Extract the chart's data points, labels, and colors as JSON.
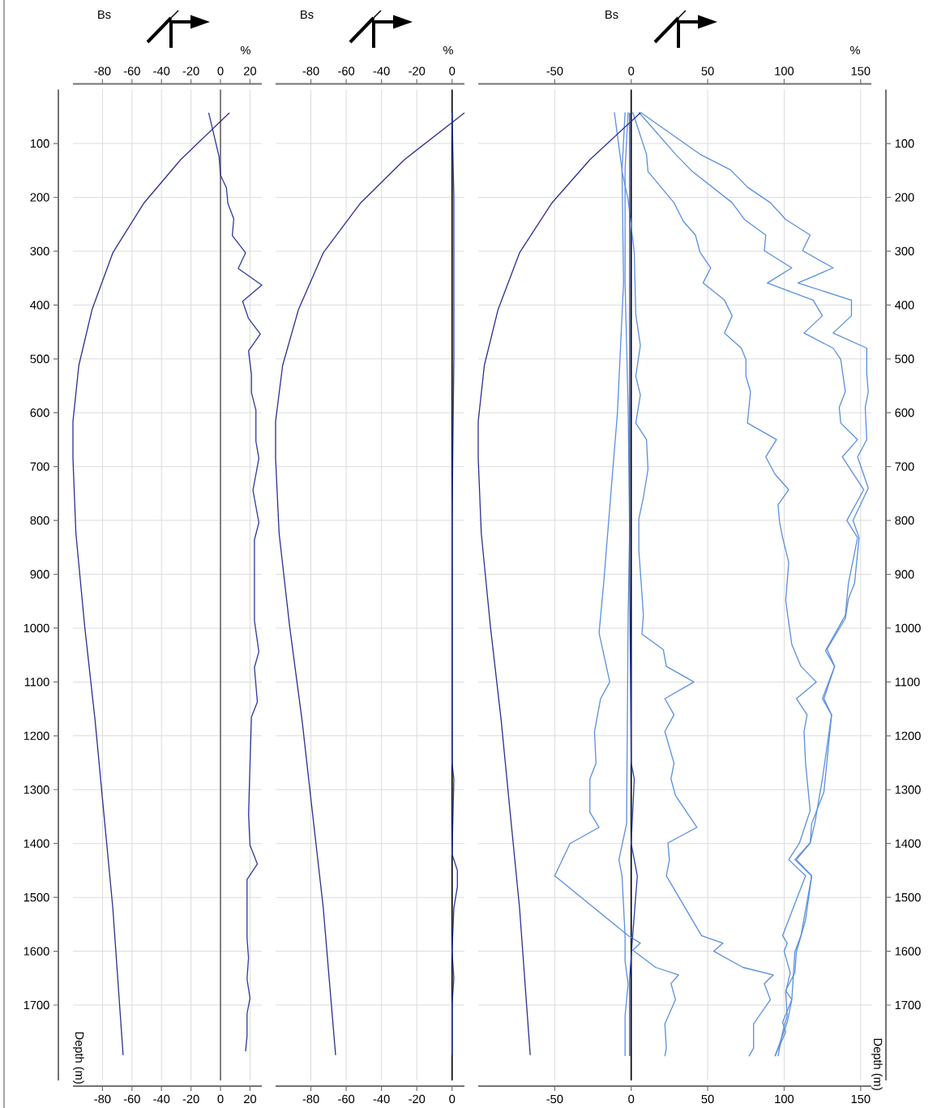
{
  "chart_data": [
    {
      "type": "line",
      "title": "Bs",
      "x2label": "%",
      "ylabel": "Depth (m)",
      "xlim": [
        -100,
        28
      ],
      "xticks": [
        -80,
        -60,
        -40,
        -20,
        0,
        20
      ],
      "x2lim": [
        -100,
        28
      ],
      "x2ticks": [
        -80,
        -60,
        -40,
        -20,
        0,
        20
      ],
      "ylim": [
        1840,
        0
      ],
      "yticks": [
        100,
        200,
        300,
        400,
        500,
        600,
        700,
        800,
        900,
        1000,
        1100,
        1200,
        1300,
        1400,
        1500,
        1600,
        1700
      ],
      "grid": true,
      "ref_lines": [
        {
          "axis": "x",
          "value": 0,
          "color": "#666666"
        }
      ],
      "series": [
        {
          "color": "#2b2f8f",
          "x": [
            6,
            -27,
            -52,
            -73,
            -87,
            -96,
            -100,
            -100,
            -98,
            -92,
            -85,
            -79,
            -73,
            -66
          ],
          "values": [
            43,
            130,
            211,
            303,
            408,
            512,
            616,
            685,
            824,
            998,
            1171,
            1346,
            1519,
            1793
          ]
        },
        {
          "color": "#2d3a9e",
          "x": [
            -8,
            -1,
            0,
            4,
            5,
            9,
            8,
            17,
            12,
            28,
            15,
            19,
            27,
            19,
            21,
            21,
            24,
            24,
            26,
            22,
            26,
            23,
            23,
            26,
            23,
            25,
            21,
            20,
            19,
            20,
            25,
            18,
            18,
            19,
            18,
            20,
            18,
            18,
            17
          ],
          "values": [
            43,
            124,
            159,
            182,
            211,
            240,
            271,
            303,
            332,
            363,
            393,
            425,
            454,
            485,
            529,
            563,
            595,
            653,
            685,
            744,
            804,
            836,
            986,
            1044,
            1073,
            1137,
            1165,
            1253,
            1346,
            1403,
            1438,
            1467,
            1576,
            1612,
            1652,
            1687,
            1716,
            1757,
            1786
          ]
        }
      ]
    },
    {
      "type": "line",
      "title": "Bs",
      "x2label": "%",
      "tick_labels": "x",
      "xlim": [
        -100,
        7
      ],
      "xticks": [
        -80,
        -60,
        -40,
        -20,
        0
      ],
      "x2lim": [
        -100,
        7
      ],
      "x2ticks": [
        -80,
        -60,
        -40,
        -20,
        0
      ],
      "ylim": [
        1840,
        0
      ],
      "yticks": [
        100,
        200,
        300,
        400,
        500,
        600,
        700,
        800,
        900,
        1000,
        1100,
        1200,
        1300,
        1400,
        1500,
        1600,
        1700
      ],
      "grid": true,
      "ref_lines": [
        {
          "axis": "x",
          "value": 0,
          "color": "#000000"
        }
      ],
      "series": [
        {
          "color": "#2b2f8f",
          "x": [
            7,
            -27,
            -52,
            -73,
            -87,
            -96,
            -100,
            -100,
            -98,
            -92,
            -85,
            -79,
            -73,
            -66
          ],
          "values": [
            43,
            130,
            211,
            303,
            408,
            512,
            616,
            685,
            824,
            998,
            1171,
            1346,
            1519,
            1793
          ]
        },
        {
          "color": "#1f35a5",
          "x": [
            0,
            1,
            1,
            0,
            0,
            1,
            0,
            3,
            3,
            1,
            0,
            1,
            0,
            0
          ],
          "values": [
            43,
            200,
            500,
            800,
            1250,
            1280,
            1420,
            1450,
            1480,
            1520,
            1600,
            1650,
            1700,
            1793
          ]
        }
      ]
    },
    {
      "type": "line",
      "title": "Bs",
      "x2label": "%",
      "ylabel": "Depth (m)",
      "xlim": [
        -100,
        157
      ],
      "xticks": [
        -50,
        0,
        50,
        100,
        150
      ],
      "x2lim": [
        -100,
        157
      ],
      "x2ticks": [
        -50,
        0,
        50,
        100,
        150
      ],
      "ylim": [
        1840,
        0
      ],
      "yticks": [
        100,
        200,
        300,
        400,
        500,
        600,
        700,
        800,
        900,
        1000,
        1100,
        1200,
        1300,
        1400,
        1500,
        1600,
        1700
      ],
      "grid": true,
      "ref_lines": [
        {
          "axis": "x",
          "value": 0,
          "color": "#000000"
        }
      ],
      "series": [
        {
          "color": "#5b8fe0",
          "x": [
            -2,
            -4,
            -4,
            -2,
            -1,
            -2,
            -3,
            -8,
            -6,
            -4,
            -4,
            -2,
            -4,
            -4
          ],
          "values": [
            42,
            149,
            359,
            590,
            820,
            976,
            1363,
            1430,
            1460,
            1571,
            1619,
            1661,
            1720,
            1795
          ]
        },
        {
          "color": "#5b8fe0",
          "x": [
            -11,
            -6,
            -5,
            -9,
            -12,
            -18,
            -21,
            -14,
            -20,
            -24,
            -23,
            -27,
            -27,
            -21,
            -40,
            -50,
            -2,
            6,
            1,
            16,
            31,
            26,
            29,
            22,
            23,
            22
          ],
          "values": [
            42,
            149,
            359,
            601,
            705,
            917,
            1009,
            1100,
            1131,
            1192,
            1251,
            1280,
            1342,
            1370,
            1400,
            1460,
            1571,
            1585,
            1598,
            1630,
            1644,
            1660,
            1690,
            1735,
            1780,
            1795
          ]
        },
        {
          "color": "#5b8fe0",
          "x": [
            -4,
            -6,
            -2,
            2,
            3,
            6,
            3,
            6,
            3,
            10,
            11,
            8,
            5,
            5,
            8,
            7,
            21,
            23,
            41,
            22,
            28,
            22,
            28,
            26,
            29,
            43,
            24,
            25,
            23,
            46,
            60,
            54,
            73,
            93,
            87,
            91,
            80,
            80,
            77
          ],
          "values": [
            42,
            152,
            204,
            302,
            417,
            475,
            532,
            567,
            619,
            650,
            705,
            757,
            797,
            855,
            976,
            1011,
            1040,
            1071,
            1100,
            1131,
            1161,
            1192,
            1251,
            1280,
            1311,
            1370,
            1399,
            1430,
            1460,
            1571,
            1585,
            1600,
            1630,
            1644,
            1660,
            1690,
            1735,
            1780,
            1795
          ]
        },
        {
          "color": "#5b8fe0",
          "x": [
            1,
            10,
            11,
            28,
            34,
            42,
            45,
            52,
            47,
            61,
            66,
            61,
            72,
            75,
            75,
            78,
            76,
            95,
            88,
            94,
            103,
            96,
            97,
            99,
            103,
            101,
            105,
            111,
            121,
            108,
            115,
            113,
            114,
            117,
            110,
            103,
            114,
            99,
            102,
            100,
            104,
            101,
            102,
            99,
            96
          ],
          "values": [
            42,
            120,
            152,
            210,
            244,
            270,
            302,
            331,
            359,
            391,
            420,
            452,
            480,
            501,
            532,
            561,
            619,
            650,
            682,
            714,
            743,
            771,
            803,
            832,
            878,
            949,
            1030,
            1071,
            1100,
            1131,
            1161,
            1192,
            1251,
            1339,
            1399,
            1430,
            1460,
            1571,
            1585,
            1600,
            1640,
            1676,
            1720,
            1750,
            1795
          ]
        },
        {
          "color": "#5b8fe0",
          "x": [
            5,
            29,
            40,
            66,
            74,
            88,
            87,
            105,
            89,
            119,
            125,
            113,
            132,
            137,
            140,
            136,
            137,
            148,
            138,
            152,
            141,
            148,
            142,
            140,
            127,
            133,
            125,
            131,
            125,
            120,
            117,
            107,
            118,
            111,
            107,
            105,
            102,
            94
          ],
          "values": [
            42,
            120,
            152,
            210,
            241,
            270,
            299,
            331,
            359,
            391,
            420,
            452,
            480,
            501,
            561,
            590,
            619,
            650,
            682,
            743,
            800,
            832,
            917,
            976,
            1042,
            1071,
            1131,
            1161,
            1280,
            1363,
            1399,
            1430,
            1460,
            1571,
            1601,
            1690,
            1732,
            1795
          ]
        },
        {
          "color": "#5b8fe0",
          "x": [
            6,
            45,
            65,
            76,
            91,
            101,
            117,
            112,
            132,
            109,
            144,
            144,
            132,
            154,
            154,
            155,
            153,
            154,
            148,
            155,
            145,
            149,
            146,
            142,
            140,
            128,
            133,
            126,
            131,
            126,
            118,
            117,
            108,
            118,
            114,
            108,
            107,
            101,
            105,
            99,
            101,
            94
          ],
          "values": [
            42,
            120,
            149,
            181,
            210,
            241,
            270,
            299,
            331,
            359,
            391,
            420,
            452,
            480,
            527,
            561,
            590,
            650,
            682,
            740,
            800,
            832,
            917,
            946,
            982,
            1039,
            1071,
            1131,
            1161,
            1304,
            1363,
            1399,
            1430,
            1460,
            1542,
            1601,
            1640,
            1673,
            1690,
            1732,
            1750,
            1795
          ]
        },
        {
          "color": "#2640a8",
          "x": [
            -1,
            -1,
            0,
            2,
            0,
            4,
            1,
            -1,
            -1
          ],
          "values": [
            43,
            900,
            1250,
            1280,
            1400,
            1460,
            1570,
            1650,
            1795
          ]
        },
        {
          "color": "#2b2f8f",
          "x": [
            6,
            -27,
            -52,
            -73,
            -87,
            -96,
            -100,
            -100,
            -98,
            -92,
            -85,
            -79,
            -73,
            -66
          ],
          "values": [
            43,
            130,
            211,
            303,
            408,
            512,
            616,
            685,
            824,
            998,
            1171,
            1346,
            1519,
            1793
          ]
        }
      ]
    }
  ]
}
